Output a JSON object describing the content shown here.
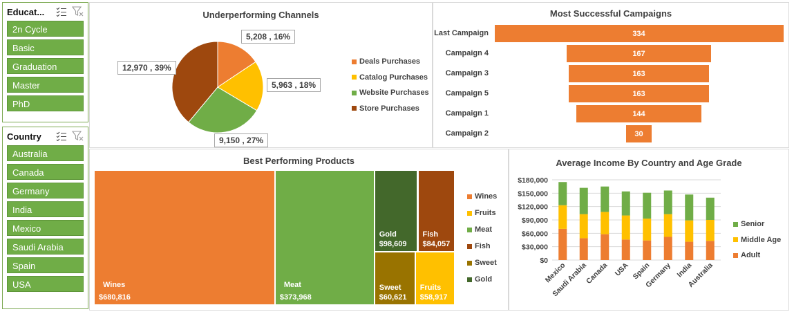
{
  "slicers": {
    "education": {
      "title": "Educat...",
      "items": [
        "2n Cycle",
        "Basic",
        "Graduation",
        "Master",
        "PhD"
      ]
    },
    "country": {
      "title": "Country",
      "items": [
        "Australia",
        "Canada",
        "Germany",
        "India",
        "Mexico",
        "Saudi Arabia",
        "Spain",
        "USA"
      ]
    }
  },
  "colors": {
    "orange": "#ed7d31",
    "yellow": "#ffc000",
    "green": "#70ad47",
    "brown": "#9e480e",
    "olive": "#997300",
    "darkgreen": "#43682b",
    "slicer_green": "#70ad47"
  },
  "chart_data": [
    {
      "id": "pie",
      "type": "pie",
      "title": "Underperforming Channels",
      "slices": [
        {
          "name": "Deals Purchases",
          "value": 5208,
          "label": "5,208 , 16%",
          "color": "#ed7d31"
        },
        {
          "name": "Catalog Purchases",
          "value": 5963,
          "label": "5,963 , 18%",
          "color": "#ffc000"
        },
        {
          "name": "Website Purchases",
          "value": 9150,
          "label": "9,150 , 27%",
          "color": "#70ad47"
        },
        {
          "name": "Store Purchases",
          "value": 12970,
          "label": "12,970 , 39%",
          "color": "#9e480e"
        }
      ]
    },
    {
      "id": "funnel",
      "type": "bar",
      "title": "Most Successful Campaigns",
      "categories": [
        "Last Campaign",
        "Campaign 4",
        "Campaign 3",
        "Campaign 5",
        "Campaign 1",
        "Campaign 2"
      ],
      "values": [
        334,
        167,
        163,
        163,
        144,
        30
      ],
      "color": "#ed7d31"
    },
    {
      "id": "treemap",
      "type": "treemap",
      "title": "Best Performing Products",
      "items": [
        {
          "name": "Wines",
          "value": 680816,
          "label": "$680,816",
          "color": "#ed7d31"
        },
        {
          "name": "Meat",
          "value": 373968,
          "label": "$373,968",
          "color": "#70ad47"
        },
        {
          "name": "Gold",
          "value": 98609,
          "label": "$98,609",
          "color": "#43682b"
        },
        {
          "name": "Fish",
          "value": 84057,
          "label": "$84,057",
          "color": "#9e480e"
        },
        {
          "name": "Sweet",
          "value": 60621,
          "label": "$60,621",
          "color": "#997300"
        },
        {
          "name": "Fruits",
          "value": 58917,
          "label": "$58,917",
          "color": "#ffc000"
        }
      ],
      "legend": [
        {
          "name": "Wines",
          "color": "#ed7d31"
        },
        {
          "name": "Fruits",
          "color": "#ffc000"
        },
        {
          "name": "Meat",
          "color": "#70ad47"
        },
        {
          "name": "Fish",
          "color": "#9e480e"
        },
        {
          "name": "Sweet",
          "color": "#997300"
        },
        {
          "name": "Gold",
          "color": "#43682b"
        }
      ]
    },
    {
      "id": "stacked",
      "type": "bar",
      "stacked": true,
      "title": "Average Income By Country and Age Grade",
      "categories": [
        "Mexico",
        "Saudi Arabia",
        "Canada",
        "USA",
        "Spain",
        "Germany",
        "India",
        "Australia"
      ],
      "series": [
        {
          "name": "Adult",
          "color": "#ed7d31",
          "values": [
            70000,
            49000,
            58000,
            46000,
            44000,
            52000,
            41000,
            43000
          ]
        },
        {
          "name": "Middle Age",
          "color": "#ffc000",
          "values": [
            53000,
            54000,
            50000,
            54000,
            49000,
            51000,
            48000,
            47000
          ]
        },
        {
          "name": "Senior",
          "color": "#70ad47",
          "values": [
            52000,
            59000,
            57000,
            54000,
            58000,
            53000,
            58000,
            50000
          ]
        }
      ],
      "legend_order": [
        "Senior",
        "Middle Age",
        "Adult"
      ],
      "ylim": [
        0,
        180000
      ],
      "yticks": [
        "$180,000",
        "$150,000",
        "$120,000",
        "$90,000",
        "$60,000",
        "$30,000",
        "$0"
      ],
      "grid": true
    }
  ]
}
